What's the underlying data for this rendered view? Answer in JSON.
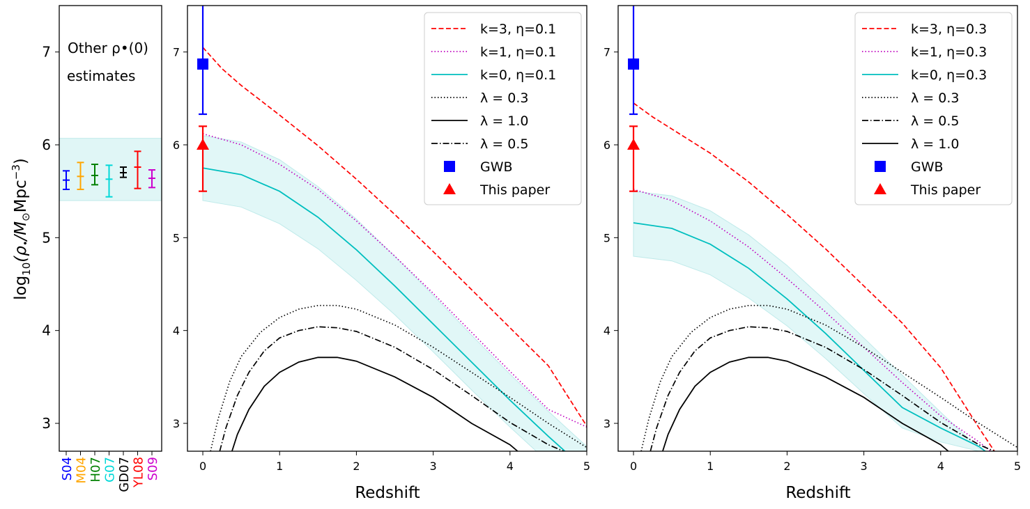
{
  "figure": {
    "ylabel": "log10(ρ•/M⊙Mpc⁻³)",
    "ylabel_parts": {
      "log": "log",
      "sub": "10",
      "rho": "(ρ",
      "bullet": "•",
      "unit": "/M",
      "sun": "⊙",
      "mpc": "Mpc",
      "exp": "−3",
      "close": ")"
    }
  },
  "chart_data": [
    {
      "type": "scatter",
      "panel": "estimates",
      "annotation_lines": [
        "Other ρ•(0)",
        "estimates"
      ],
      "ylim": [
        2.7,
        7.5
      ],
      "yticks": [
        3,
        4,
        5,
        6,
        7
      ],
      "band": {
        "low": 5.4,
        "high": 6.07,
        "color": "#e0f6f6"
      },
      "categories": [
        "S04",
        "M04",
        "H07",
        "G07",
        "GD07",
        "YL08",
        "S09"
      ],
      "points": [
        {
          "label": "S04",
          "value": 5.62,
          "low": 5.52,
          "high": 5.72,
          "color": "#0000ff"
        },
        {
          "label": "M04",
          "value": 5.66,
          "low": 5.52,
          "high": 5.81,
          "color": "#ffa500"
        },
        {
          "label": "H07",
          "value": 5.67,
          "low": 5.57,
          "high": 5.79,
          "color": "#008000"
        },
        {
          "label": "G07",
          "value": 5.63,
          "low": 5.44,
          "high": 5.78,
          "color": "#00d8d8"
        },
        {
          "label": "GD07",
          "value": 5.7,
          "low": 5.65,
          "high": 5.76,
          "color": "#000000"
        },
        {
          "label": "YL08",
          "value": 5.76,
          "low": 5.53,
          "high": 5.93,
          "color": "#ff0000"
        },
        {
          "label": "S09",
          "value": 5.64,
          "low": 5.54,
          "high": 5.73,
          "color": "#cc00cc"
        }
      ]
    },
    {
      "type": "line",
      "panel": "eta01",
      "xlabel": "Redshift",
      "xlim": [
        -0.2,
        5
      ],
      "ylim": [
        2.7,
        7.5
      ],
      "xticks": [
        0,
        1,
        2,
        3,
        4,
        5
      ],
      "yticks": [
        3,
        4,
        5,
        6,
        7
      ],
      "legend_position": "upper right",
      "band": {
        "x": [
          0,
          0.5,
          1,
          1.5,
          2,
          2.5,
          3,
          3.5,
          4,
          4.5,
          5
        ],
        "low": [
          5.4,
          5.33,
          5.15,
          4.88,
          4.54,
          4.17,
          3.77,
          3.36,
          2.96,
          2.58,
          2.22
        ],
        "high": [
          6.1,
          6.03,
          5.84,
          5.55,
          5.2,
          4.8,
          4.38,
          3.95,
          3.53,
          3.13,
          2.75
        ]
      },
      "series": [
        {
          "name": "k=3, η=0.1",
          "style": "dashed",
          "color": "#ff0000",
          "x": [
            0,
            0.25,
            0.5,
            0.75,
            1,
            1.5,
            2,
            2.5,
            3,
            3.5,
            4,
            4.5,
            5
          ],
          "y": [
            7.05,
            6.82,
            6.64,
            6.48,
            6.32,
            5.99,
            5.63,
            5.25,
            4.85,
            4.44,
            4.03,
            3.62,
            2.97
          ]
        },
        {
          "name": "k=1, η=0.1",
          "style": "dotted",
          "color": "#bf00bf",
          "x": [
            0,
            0.5,
            1,
            1.5,
            2,
            2.5,
            3,
            3.5,
            4,
            4.5,
            5
          ],
          "y": [
            6.12,
            6.0,
            5.79,
            5.52,
            5.18,
            4.8,
            4.4,
            3.98,
            3.56,
            3.15,
            2.96
          ]
        },
        {
          "name": "k=0, η=0.1",
          "style": "solid",
          "color": "#00bfbf",
          "x": [
            0,
            0.5,
            1,
            1.5,
            2,
            2.5,
            3,
            3.5,
            4,
            4.5,
            5
          ],
          "y": [
            5.75,
            5.68,
            5.5,
            5.22,
            4.87,
            4.48,
            4.07,
            3.66,
            3.25,
            2.86,
            2.49
          ]
        },
        {
          "name": "λ = 0.3",
          "style": "dotted",
          "color": "#000000",
          "x": [
            0.1,
            0.2,
            0.35,
            0.5,
            0.75,
            1,
            1.25,
            1.5,
            1.75,
            2,
            2.5,
            3,
            3.5,
            4,
            4.5,
            5
          ],
          "y": [
            2.7,
            3.05,
            3.45,
            3.72,
            3.98,
            4.14,
            4.23,
            4.27,
            4.27,
            4.23,
            4.06,
            3.82,
            3.55,
            3.28,
            3.0,
            2.74
          ]
        },
        {
          "name": "λ = 1.0",
          "style": "solid",
          "color": "#000000",
          "x": [
            0.38,
            0.45,
            0.6,
            0.8,
            1,
            1.25,
            1.5,
            1.75,
            2,
            2.5,
            3,
            3.5,
            4,
            4.1
          ],
          "y": [
            2.7,
            2.88,
            3.15,
            3.4,
            3.55,
            3.66,
            3.71,
            3.71,
            3.67,
            3.5,
            3.28,
            3.0,
            2.77,
            2.7
          ]
        },
        {
          "name": "λ = 0.5",
          "style": "dashdot",
          "color": "#000000",
          "x": [
            0.22,
            0.3,
            0.45,
            0.6,
            0.8,
            1,
            1.25,
            1.5,
            1.75,
            2,
            2.5,
            3,
            3.5,
            4,
            4.5,
            4.7
          ],
          "y": [
            2.7,
            2.95,
            3.3,
            3.55,
            3.78,
            3.92,
            4.0,
            4.04,
            4.03,
            3.99,
            3.82,
            3.58,
            3.3,
            3.01,
            2.77,
            2.7
          ]
        }
      ],
      "markers": [
        {
          "name": "GWB",
          "shape": "square",
          "color": "#0000ff",
          "x": 0,
          "y": 6.87,
          "low": 6.33,
          "high": 7.5
        },
        {
          "name": "This paper",
          "shape": "triangle",
          "color": "#ff0000",
          "x": 0,
          "y": 6.0,
          "low": 5.5,
          "high": 6.2
        }
      ]
    },
    {
      "type": "line",
      "panel": "eta03",
      "xlabel": "Redshift",
      "xlim": [
        -0.2,
        5
      ],
      "ylim": [
        2.7,
        7.5
      ],
      "xticks": [
        0,
        1,
        2,
        3,
        4,
        5
      ],
      "yticks": [
        3,
        4,
        5,
        6,
        7
      ],
      "legend_position": "upper right",
      "band": {
        "x": [
          0,
          0.5,
          1,
          1.5,
          2,
          2.5,
          3,
          3.5,
          4,
          4.5,
          4.6
        ],
        "low": [
          4.8,
          4.75,
          4.6,
          4.35,
          4.05,
          3.7,
          3.32,
          2.95,
          2.8,
          2.7,
          2.7
        ],
        "high": [
          5.5,
          5.45,
          5.29,
          5.03,
          4.7,
          4.32,
          3.92,
          3.52,
          3.12,
          2.73,
          2.7
        ]
      },
      "series": [
        {
          "name": "k=3, η=0.3",
          "style": "dashed",
          "color": "#ff0000",
          "x": [
            0,
            0.25,
            0.5,
            0.75,
            1,
            1.5,
            2,
            2.5,
            3,
            3.5,
            4,
            4.5,
            4.7
          ],
          "y": [
            6.45,
            6.3,
            6.17,
            6.04,
            5.91,
            5.6,
            5.25,
            4.88,
            4.48,
            4.08,
            3.6,
            2.95,
            2.7
          ]
        },
        {
          "name": "k=1, η=0.3",
          "style": "dotted",
          "color": "#bf00bf",
          "x": [
            0,
            0.5,
            1,
            1.5,
            2,
            2.5,
            3,
            3.5,
            4,
            4.5,
            4.65
          ],
          "y": [
            5.52,
            5.4,
            5.18,
            4.9,
            4.56,
            4.2,
            3.82,
            3.44,
            3.08,
            2.8,
            2.7
          ]
        },
        {
          "name": "k=0, η=0.3",
          "style": "solid",
          "color": "#00bfbf",
          "x": [
            0,
            0.5,
            1,
            1.5,
            2,
            2.5,
            3,
            3.5,
            4,
            4.5,
            4.58
          ],
          "y": [
            5.16,
            5.1,
            4.93,
            4.67,
            4.34,
            3.97,
            3.57,
            3.17,
            2.95,
            2.75,
            2.7
          ]
        },
        {
          "name": "λ = 0.3",
          "style": "dotted",
          "color": "#000000",
          "x": [
            0.1,
            0.2,
            0.35,
            0.5,
            0.75,
            1,
            1.25,
            1.5,
            1.75,
            2,
            2.5,
            3,
            3.5,
            4,
            4.5,
            5
          ],
          "y": [
            2.7,
            3.05,
            3.45,
            3.72,
            3.98,
            4.14,
            4.23,
            4.27,
            4.27,
            4.23,
            4.06,
            3.82,
            3.55,
            3.28,
            3.0,
            2.74
          ]
        },
        {
          "name": "λ = 0.5",
          "style": "dashdot",
          "color": "#000000",
          "x": [
            0.22,
            0.3,
            0.45,
            0.6,
            0.8,
            1,
            1.25,
            1.5,
            1.75,
            2,
            2.5,
            3,
            3.5,
            4,
            4.5,
            4.7
          ],
          "y": [
            2.7,
            2.95,
            3.3,
            3.55,
            3.78,
            3.92,
            4.0,
            4.04,
            4.03,
            3.99,
            3.82,
            3.58,
            3.3,
            3.01,
            2.77,
            2.7
          ]
        },
        {
          "name": "λ = 1.0",
          "style": "solid",
          "color": "#000000",
          "x": [
            0.38,
            0.45,
            0.6,
            0.8,
            1,
            1.25,
            1.5,
            1.75,
            2,
            2.5,
            3,
            3.5,
            4,
            4.1
          ],
          "y": [
            2.7,
            2.88,
            3.15,
            3.4,
            3.55,
            3.66,
            3.71,
            3.71,
            3.67,
            3.5,
            3.28,
            3.0,
            2.77,
            2.7
          ]
        }
      ],
      "markers": [
        {
          "name": "GWB",
          "shape": "square",
          "color": "#0000ff",
          "x": 0,
          "y": 6.87,
          "low": 6.33,
          "high": 7.5
        },
        {
          "name": "This paper",
          "shape": "triangle",
          "color": "#ff0000",
          "x": 0,
          "y": 6.0,
          "low": 5.5,
          "high": 6.2
        }
      ]
    }
  ]
}
